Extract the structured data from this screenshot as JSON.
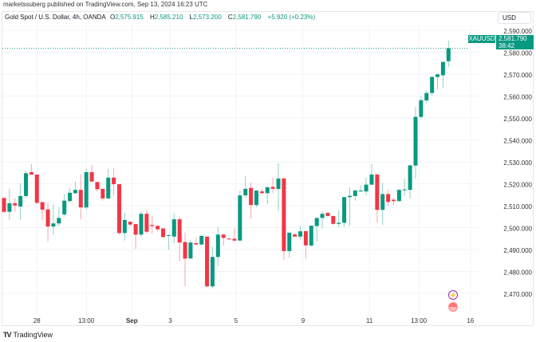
{
  "publisher_line": "marketssuberg published on TradingView.com, Sep 13, 2024 16:23 UTC",
  "legend": {
    "symbol_title": "Gold Spot / U.S. Dollar, 4h, OANDA",
    "open_label": "O",
    "open": "2,575.915",
    "high_label": "H",
    "high": "2,585.210",
    "low_label": "L",
    "low": "2,573.200",
    "close_label": "C",
    "close": "2,581.790",
    "change": "+5.920 (+0.23%)"
  },
  "currency": "USD",
  "price_tag": {
    "symbol": "XAUUSD",
    "price": "2,581.790",
    "countdown": "38:42"
  },
  "footer_logo": "TradingView",
  "colors": {
    "up": "#089981",
    "down": "#f23645",
    "grid": "#f0f3fa"
  },
  "icons": [
    "lightning-event-icon",
    "us-flag-event-icon"
  ],
  "chart_data": {
    "type": "candlestick",
    "interval": "4h",
    "ylim": [
      2465,
      2595
    ],
    "y_ticks": [
      "2,590.000",
      "2,580.000",
      "2,570.000",
      "2,560.000",
      "2,550.000",
      "2,540.000",
      "2,530.000",
      "2,520.000",
      "2,510.000",
      "2,500.000",
      "2,490.000",
      "2,480.000",
      "2,470.000"
    ],
    "x_ticks": [
      {
        "label": "28",
        "bold": false,
        "index": 6
      },
      {
        "label": "13:00",
        "bold": false,
        "index": 15
      },
      {
        "label": "Sep",
        "bold": true,
        "index": 23.3
      },
      {
        "label": "3",
        "bold": false,
        "index": 30.3
      },
      {
        "label": "5",
        "bold": false,
        "index": 42.3
      },
      {
        "label": "9",
        "bold": false,
        "index": 54.5
      },
      {
        "label": "11",
        "bold": false,
        "index": 66.6
      },
      {
        "label": "13:00",
        "bold": false,
        "index": 75.6
      },
      {
        "label": "16",
        "bold": false,
        "index": 85
      }
    ],
    "last_price": 2581.79,
    "ohlc": [
      [
        2513.5,
        2514.1,
        2506.3,
        2507.2
      ],
      [
        2507.2,
        2517.7,
        2503.6,
        2511.1
      ],
      [
        2511.1,
        2513.5,
        2507.2,
        2510.1
      ],
      [
        2509.6,
        2520.3,
        2503.6,
        2514.4
      ],
      [
        2514.4,
        2525.9,
        2513.5,
        2524.8
      ],
      [
        2525.3,
        2529.0,
        2524.2,
        2524.2
      ],
      [
        2524.2,
        2524.2,
        2510.5,
        2511.3
      ],
      [
        2511.6,
        2511.6,
        2503.5,
        2508.2
      ],
      [
        2508.3,
        2511.3,
        2493.7,
        2500.5
      ],
      [
        2500.5,
        2510.5,
        2496.8,
        2501.9
      ],
      [
        2501.9,
        2509.4,
        2500.5,
        2504.4
      ],
      [
        2506.0,
        2515.3,
        2505.0,
        2512.3
      ],
      [
        2512.1,
        2518.1,
        2511.5,
        2515.9
      ],
      [
        2515.7,
        2521.0,
        2515.3,
        2517.2
      ],
      [
        2517.2,
        2524.2,
        2503.8,
        2509.2
      ],
      [
        2509.2,
        2526.8,
        2508.3,
        2525.3
      ],
      [
        2525.3,
        2528.7,
        2521.0,
        2521.0
      ],
      [
        2520.8,
        2520.8,
        2516.5,
        2517.5
      ],
      [
        2517.7,
        2517.7,
        2512.3,
        2513.3
      ],
      [
        2513.3,
        2526.8,
        2512.9,
        2522.8
      ],
      [
        2522.8,
        2527.1,
        2514.7,
        2519.8
      ],
      [
        2519.8,
        2519.8,
        2496.8,
        2497.5
      ],
      [
        2497.5,
        2506.8,
        2494.1,
        2503.5
      ],
      [
        2502.7,
        2502.7,
        2500.7,
        2501.4
      ],
      [
        2501.6,
        2501.6,
        2490.3,
        2496.8
      ],
      [
        2496.8,
        2507.5,
        2495.6,
        2506.3
      ],
      [
        2506.3,
        2508.1,
        2497.2,
        2498.1
      ],
      [
        2501.2,
        2505.5,
        2497.3,
        2500.7
      ],
      [
        2500.8,
        2501.0,
        2498.5,
        2499.2
      ],
      [
        2499.6,
        2499.9,
        2495.1,
        2495.7
      ],
      [
        2496.3,
        2497.0,
        2489.9,
        2496.6
      ],
      [
        2495.9,
        2506.5,
        2492.9,
        2503.8
      ],
      [
        2503.8,
        2505.0,
        2484.7,
        2493.2
      ],
      [
        2493.4,
        2497.7,
        2473.3,
        2485.9
      ],
      [
        2485.9,
        2494.4,
        2485.9,
        2493.2
      ],
      [
        2492.9,
        2495.3,
        2492.2,
        2492.3
      ],
      [
        2492.3,
        2496.8,
        2491.9,
        2496.2
      ],
      [
        2495.9,
        2495.9,
        2472.8,
        2473.2
      ],
      [
        2473.2,
        2491.3,
        2472.3,
        2486.6
      ],
      [
        2486.6,
        2500.2,
        2482.6,
        2496.8
      ],
      [
        2496.8,
        2497.2,
        2491.7,
        2495.3
      ],
      [
        2495.0,
        2495.3,
        2494.5,
        2494.8
      ],
      [
        2494.9,
        2499.6,
        2493.6,
        2494.1
      ],
      [
        2494.1,
        2516.9,
        2494.1,
        2514.7
      ],
      [
        2514.7,
        2523.5,
        2513.5,
        2517.7
      ],
      [
        2518.1,
        2520.5,
        2504.1,
        2510.3
      ],
      [
        2510.3,
        2516.9,
        2509.3,
        2516.9
      ],
      [
        2516.5,
        2517.7,
        2515.3,
        2515.7
      ],
      [
        2515.7,
        2518.9,
        2510.7,
        2518.4
      ],
      [
        2518.6,
        2522.8,
        2515.7,
        2517.7
      ],
      [
        2517.6,
        2529.3,
        2507.7,
        2522.4
      ],
      [
        2522.4,
        2523.0,
        2485.3,
        2489.3
      ],
      [
        2489.3,
        2497.7,
        2486.3,
        2497.7
      ],
      [
        2496.9,
        2497.5,
        2495.9,
        2495.9
      ],
      [
        2495.9,
        2500.8,
        2494.7,
        2498.3
      ],
      [
        2498.4,
        2498.4,
        2485.9,
        2491.9
      ],
      [
        2491.8,
        2500.9,
        2491.5,
        2500.9
      ],
      [
        2500.7,
        2504.4,
        2493.5,
        2504.4
      ],
      [
        2504.4,
        2507.5,
        2499.6,
        2506.3
      ],
      [
        2506.7,
        2507.1,
        2504.9,
        2505.3
      ],
      [
        2505.3,
        2505.3,
        2501.3,
        2501.7
      ],
      [
        2501.7,
        2507.8,
        2500.2,
        2502.2
      ],
      [
        2502.2,
        2513.9,
        2500.4,
        2513.9
      ],
      [
        2513.9,
        2518.4,
        2500.8,
        2514.5
      ],
      [
        2514.4,
        2517.5,
        2512.3,
        2516.9
      ],
      [
        2516.5,
        2519.3,
        2516.4,
        2516.9
      ],
      [
        2516.5,
        2522.8,
        2514.7,
        2519.6
      ],
      [
        2519.6,
        2529.0,
        2519.4,
        2524.2
      ],
      [
        2524.2,
        2524.8,
        2502.4,
        2508.1
      ],
      [
        2508.1,
        2520.4,
        2501.2,
        2515.3
      ],
      [
        2515.3,
        2517.2,
        2509.9,
        2511.7
      ],
      [
        2512.7,
        2513.6,
        2510.3,
        2512.1
      ],
      [
        2512.1,
        2517.6,
        2511.7,
        2517.2
      ],
      [
        2517.3,
        2522.3,
        2514.5,
        2517.4
      ],
      [
        2517.2,
        2528.4,
        2513.3,
        2528.4
      ],
      [
        2528.3,
        2555.0,
        2522.3,
        2550.5
      ],
      [
        2550.5,
        2559.8,
        2549.5,
        2558.1
      ],
      [
        2558.0,
        2562.5,
        2556.7,
        2561.4
      ],
      [
        2561.4,
        2569.3,
        2560.2,
        2568.7
      ],
      [
        2568.7,
        2570.3,
        2563.0,
        2569.9
      ],
      [
        2569.5,
        2575.6,
        2563.6,
        2575.6
      ],
      [
        2575.9,
        2585.2,
        2573.2,
        2581.8
      ]
    ]
  }
}
